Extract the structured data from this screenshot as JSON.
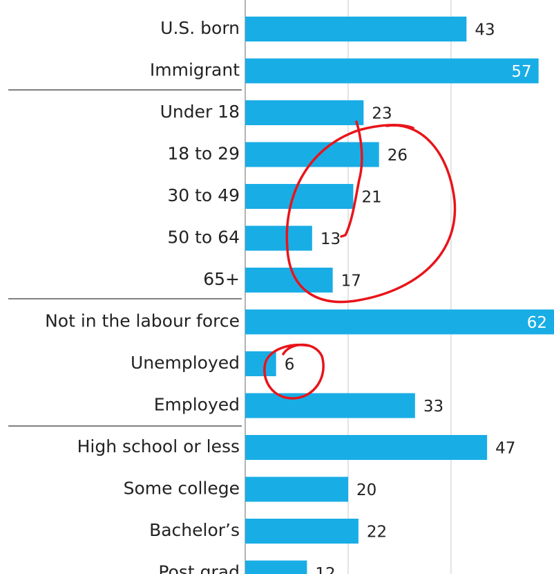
{
  "chart_data": {
    "type": "bar",
    "orientation": "horizontal",
    "categories": [
      "U.S. born",
      "Immigrant",
      "Under 18",
      "18 to 29",
      "30 to 49",
      "50 to 64",
      "65+",
      "Not in the labour force",
      "Unemployed",
      "Employed",
      "High school or less",
      "Some college",
      "Bachelor’s",
      "Post grad"
    ],
    "values": [
      43,
      57,
      23,
      26,
      21,
      13,
      17,
      62,
      6,
      33,
      47,
      20,
      22,
      12
    ],
    "color": "#19ade6",
    "xlim": [
      0,
      60
    ],
    "xticks": [
      20,
      40
    ],
    "grid": true
  }
}
